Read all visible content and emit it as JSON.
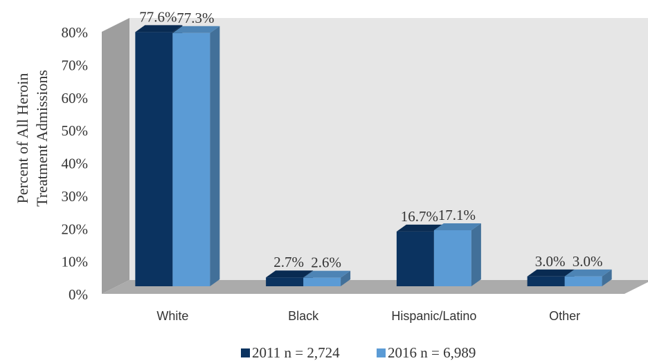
{
  "chart_data": {
    "type": "bar",
    "title": "",
    "xlabel": "",
    "ylabel": "Percent of All Heroin Treatment Admissions",
    "ylabel_lines": [
      "Percent of All Heroin",
      "Treatment Admissions"
    ],
    "categories": [
      "White",
      "Black",
      "Hispanic/Latino",
      "Other"
    ],
    "series": [
      {
        "name": "2011  n = 2,724",
        "values": [
          77.6,
          2.7,
          16.7,
          3.0
        ],
        "labels": [
          "77.6%",
          "2.7%",
          "16.7%",
          "3.0%"
        ],
        "color": "#0b3360"
      },
      {
        "name": "2016  n = 6,989",
        "values": [
          77.3,
          2.6,
          17.1,
          3.0
        ],
        "labels": [
          "77.3%",
          "2.6%",
          "17.1%",
          "3.0%"
        ],
        "color": "#5b9bd5"
      }
    ],
    "ylim": [
      0,
      80
    ],
    "yticks": [
      "0%",
      "10%",
      "20%",
      "30%",
      "40%",
      "50%",
      "60%",
      "70%",
      "80%"
    ],
    "grid": false,
    "legend_position": "bottom",
    "style": "3d-clustered-column",
    "colors": {
      "wall_back": "#e6e6e6",
      "wall_side": "#9e9e9e",
      "floor": "#ababab"
    }
  }
}
